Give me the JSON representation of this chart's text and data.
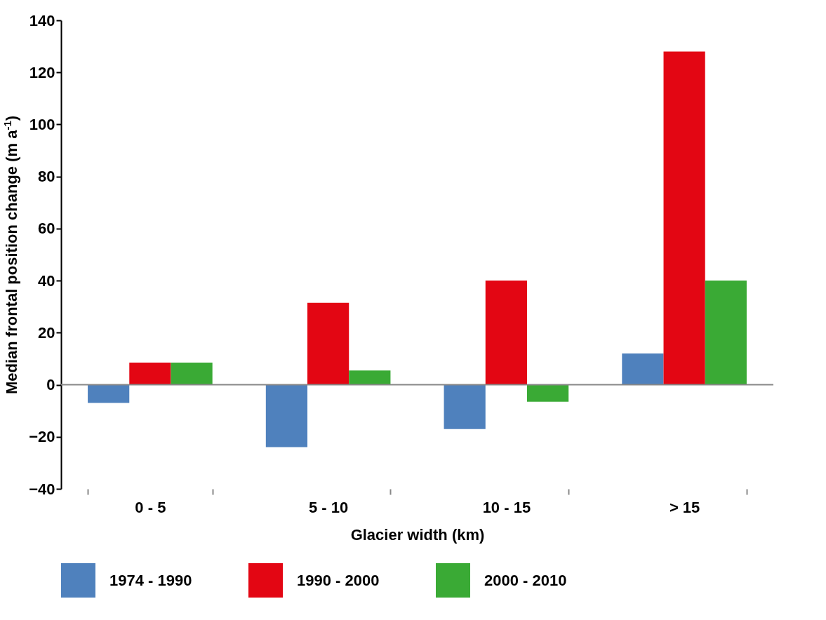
{
  "chart_data": {
    "type": "bar",
    "xlabel": "Glacier width (km)",
    "ylabel": "Median frontal position change (m a$^{-1}$)",
    "categories": [
      "0 - 5",
      "5 - 10",
      "10 - 15",
      "> 15"
    ],
    "series": [
      {
        "name": "1974 - 1990",
        "color": "#4f81bd",
        "values": [
          -7,
          -24,
          -17,
          12
        ]
      },
      {
        "name": "1990 - 2000",
        "color": "#e30613",
        "values": [
          8.5,
          31.5,
          40,
          128
        ]
      },
      {
        "name": "2000 - 2010",
        "color": "#3aaa35",
        "values": [
          8.5,
          5.5,
          -6.5,
          40
        ]
      }
    ],
    "ylim": [
      -40,
      140
    ],
    "yticks": [
      -40,
      -20,
      0,
      20,
      40,
      60,
      80,
      100,
      120,
      140
    ],
    "legend": "bottom"
  }
}
